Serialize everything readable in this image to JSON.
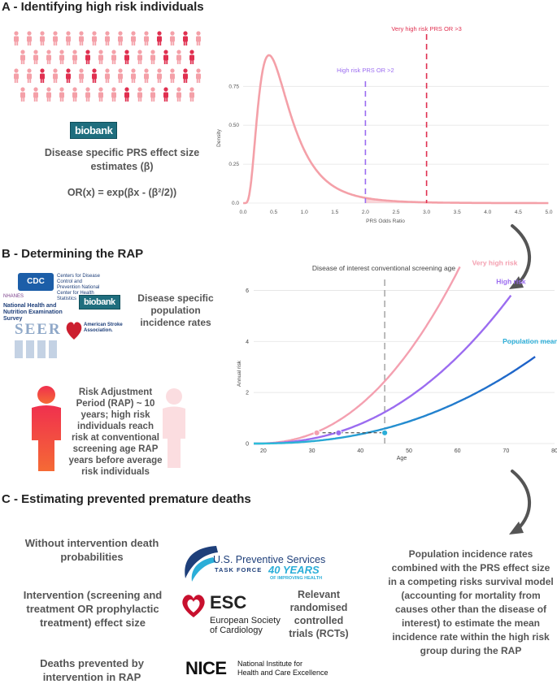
{
  "sectionA": {
    "title": "A - Identifying high risk individuals",
    "biobank_logo": "biobank",
    "prs_text": "Disease specific PRS effect size estimates (β)",
    "or_formula": "OR(x) = exp(βx - (β²/2))",
    "colors": {
      "pink": "#f4a0a8",
      "red": "#e03050",
      "purple": "#9b6cf0"
    }
  },
  "chartA": {
    "type": "line",
    "xlabel": "PRS Odds Ratio",
    "ylabel": "Density",
    "xlim": [
      0,
      5
    ],
    "ylim": [
      0,
      0.95
    ],
    "xticks": [
      "0.0",
      "0.5",
      "1.0",
      "1.5",
      "2.0",
      "2.5",
      "3.0",
      "3.5",
      "4.0",
      "4.5",
      "5.0"
    ],
    "yticks": [
      "0.0",
      "0.25",
      "0.50",
      "0.75"
    ],
    "high_risk_label": "High risk PRS OR >2",
    "high_risk_threshold": 2,
    "very_high_risk_label": "Very high risk PRS OR >3",
    "very_high_risk_threshold": 3
  },
  "sectionB": {
    "title": "B - Determining the RAP",
    "cdc_text": "Centers for Disease Control and Prevention National Center for Health Statistics",
    "cdc_logo": "CDC",
    "nhanes_label": "National Health and Nutrition Examination Survey",
    "nhanes_small": "NHANES",
    "seer_logo": "SEER",
    "asa_text": "American Stroke Association.",
    "biobank_logo": "biobank",
    "incidence_text": "Disease specific population incidence rates",
    "rap_text": "Risk Adjustment Period (RAP) ~ 10 years; high risk individuals reach risk at conventional screening age RAP years before average risk individuals"
  },
  "chartB": {
    "type": "line",
    "xlabel": "Age",
    "ylabel": "Annual risk",
    "xlim": [
      18,
      80
    ],
    "ylim": [
      0,
      6.3
    ],
    "xticks": [
      "20",
      "30",
      "40",
      "50",
      "60",
      "70",
      "80"
    ],
    "yticks": [
      "0",
      "2",
      "4",
      "6"
    ],
    "screening_label": "Disease of interest conventional screening age",
    "screening_age": 45,
    "series": [
      {
        "name": "Very high risk",
        "color": "#f4a0b0",
        "start": 18,
        "end": 62,
        "value_at_end": 7.5
      },
      {
        "name": "High risk",
        "color": "#9b6cf0",
        "start": 18,
        "end": 71,
        "value_at_end": 5.8
      },
      {
        "name": "Population mean risk",
        "color": "#2baed8",
        "end_color": "#1e5fc8",
        "start": 18,
        "end": 76,
        "value_at_end": 3.4
      }
    ],
    "markers": [
      {
        "age": 31,
        "value": 0.42,
        "color": "#f4a0b0"
      },
      {
        "age": 35.5,
        "value": 0.42,
        "color": "#9b6cf0"
      },
      {
        "age": 45,
        "value": 0.42,
        "color": "#2baed8"
      }
    ]
  },
  "sectionC": {
    "title": "C - Estimating prevented premature deaths",
    "without_intervention": "Without intervention death probabilities",
    "intervention_effect": "Intervention (screening and treatment OR prophylactic treatment) effect size",
    "deaths_prevented": "Deaths prevented by intervention in RAP",
    "uspstf_line1": "U.S. Preventive Services",
    "uspstf_line2": "TASK FORCE",
    "uspstf_years": "40 YEARS",
    "uspstf_sub": "OF IMPROVING HEALTH",
    "esc_title": "ESC",
    "esc_line1": "European Society",
    "esc_line2": "of Cardiology",
    "rct_text": "Relevant randomised controlled trials (RCTs)",
    "nice_title": "NICE",
    "nice_line1": "National Institute for",
    "nice_line2": "Health and Care Excellence",
    "population_text": "Population incidence rates combined with the PRS effect size in a competing risks survival model (accounting for mortality from causes other than the disease of interest) to estimate the mean incidence rate within the high risk group during the  RAP"
  }
}
